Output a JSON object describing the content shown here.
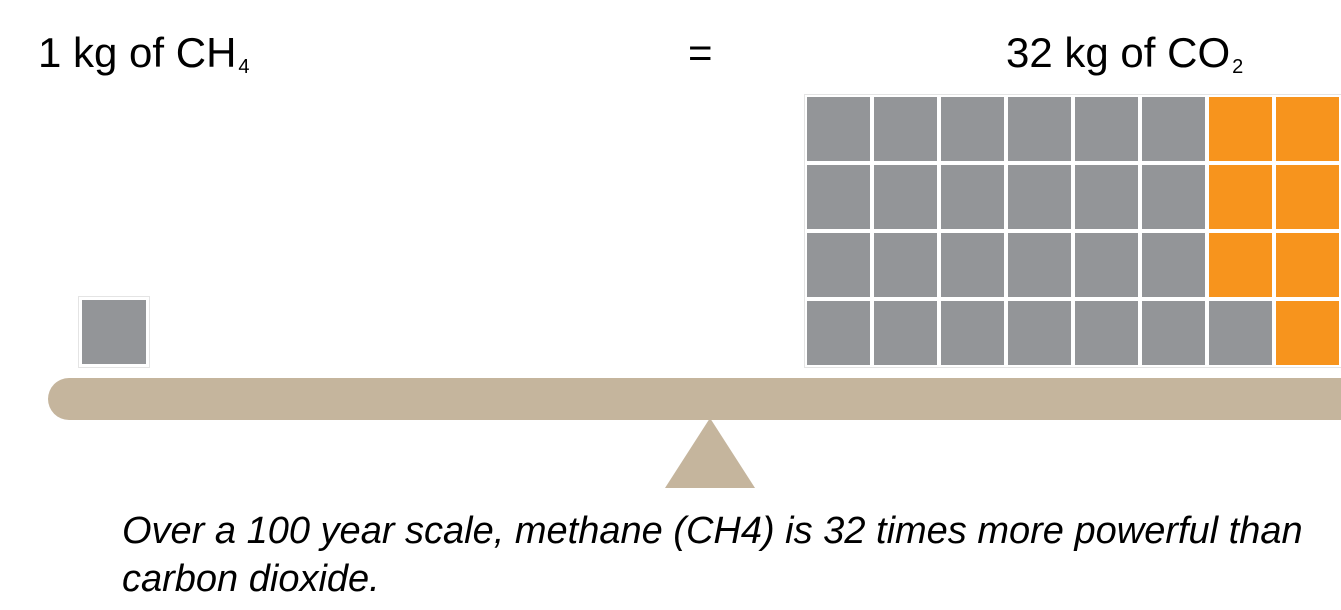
{
  "left_label": {
    "text": "1 kg of CH",
    "subscript": "4"
  },
  "equals": "=",
  "right_label": {
    "text": "32 kg of CO",
    "subscript": "2"
  },
  "caption": "Over a 100 year scale, methane (CH4) is 32 times more powerful than carbon dioxide.",
  "colors": {
    "block_gray": "#939598",
    "block_orange": "#f7941d",
    "balance_beam": "#c5b59d"
  },
  "block_grid": {
    "rows": [
      [
        "gray",
        "gray",
        "gray",
        "gray",
        "gray",
        "gray",
        "orange",
        "orange"
      ],
      [
        "gray",
        "gray",
        "gray",
        "gray",
        "gray",
        "gray",
        "orange",
        "orange"
      ],
      [
        "gray",
        "gray",
        "gray",
        "gray",
        "gray",
        "gray",
        "orange",
        "orange"
      ],
      [
        "gray",
        "gray",
        "gray",
        "gray",
        "gray",
        "gray",
        "gray",
        "orange"
      ]
    ]
  },
  "single_block_color": "gray"
}
